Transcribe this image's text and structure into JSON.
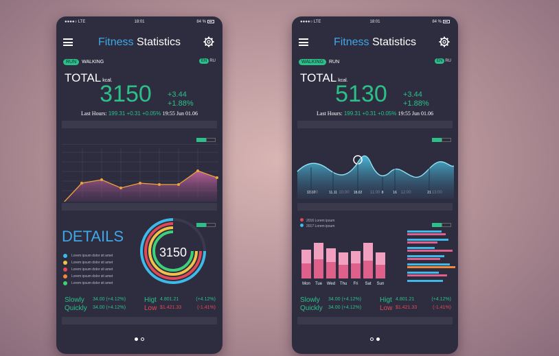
{
  "colors": {
    "accent_green": "#2bc08a",
    "accent_blue": "#3fa7e8",
    "negative_red": "#e04a56",
    "panel": "#2e2d3f"
  },
  "phones": [
    {
      "status": {
        "carrier": "●●●●○ LTE",
        "time": "18:01",
        "battery": "84 %"
      },
      "title_part1": "Fitness",
      "title_part2": "Statistics",
      "toggle_on": "RUN",
      "toggle_off": "WALKING",
      "lang_on": "EN",
      "lang_off": "RU",
      "total_label": "TOTAL",
      "total_unit": "kcal.",
      "big_value": "3150",
      "delta_1": "+3.44",
      "delta_2": "+1.88%",
      "last_hours_label": "Last Hours:",
      "last_hours_v1": "199.31",
      "last_hours_v2": "+0.31",
      "last_hours_v3": "+0.05%",
      "last_hours_time": "19:55 Jun 01.06",
      "details_title": "DETAILS",
      "ring_value": "3150",
      "legend": [
        {
          "color": "#3fb9e8",
          "text": "Lorem ipsum dolor sit amet"
        },
        {
          "color": "#f0c24a",
          "text": "Lorem ipsum dolor sit amet"
        },
        {
          "color": "#e04a56",
          "text": "Lorem ipsum dolor sit amet"
        },
        {
          "color": "#f08a3a",
          "text": "Lorem ipsum dolor sit amet"
        },
        {
          "color": "#3fd07a",
          "text": "Lorem ipsum dolor sit amet"
        }
      ],
      "stats": {
        "slowly": "Slowly",
        "slowly_val": "34.00 (+4.12%)",
        "quickly": "Quickly",
        "quickly_val": "34.00 (+4.12%)",
        "high": "Higt",
        "high_val": "4.801.21",
        "high_pct": "(+4.12%)",
        "low": "Low",
        "low_val": "$1.421.33",
        "low_pct": "(-1.41%)"
      }
    },
    {
      "status": {
        "carrier": "●●●●○ LTE",
        "time": "18:01",
        "battery": "84 %"
      },
      "title_part1": "Fitness",
      "title_part2": "Statistics",
      "toggle_on": "WALKING",
      "toggle_off": "RUN",
      "lang_on": "EN",
      "lang_off": "RU",
      "total_label": "TOTAL",
      "total_unit": "kcal.",
      "big_value": "5130",
      "delta_1": "+3.44",
      "delta_2": "+1.88%",
      "last_hours_label": "Last Hours:",
      "last_hours_v1": "199.31",
      "last_hours_v2": "+0.31",
      "last_hours_v3": "+0.05%",
      "last_hours_time": "19:55 Jun 01.06",
      "wave_times": [
        "09:00",
        "10:00",
        "11:00",
        "12:00",
        "13:00"
      ],
      "wave_labels": [
        "12.02",
        "11.11",
        "18.02",
        "8",
        "16",
        "21"
      ],
      "bar_legend": [
        "2016 Lorem ipsum",
        "2017 Lorem ipsum"
      ],
      "bar_days": [
        "Mon",
        "Tue",
        "Wed",
        "Thu",
        "Fri",
        "Sat",
        "Sun"
      ],
      "stats": {
        "slowly": "Slowly",
        "slowly_val": "34.00 (+4.12%)",
        "quickly": "Quickly",
        "quickly_val": "34.00 (+4.12%)",
        "high": "Higt",
        "high_val": "4.801.21",
        "high_pct": "(+4.12%)",
        "low": "Low",
        "low_val": "$1.421.33",
        "low_pct": "(-1.41%)"
      }
    }
  ]
}
